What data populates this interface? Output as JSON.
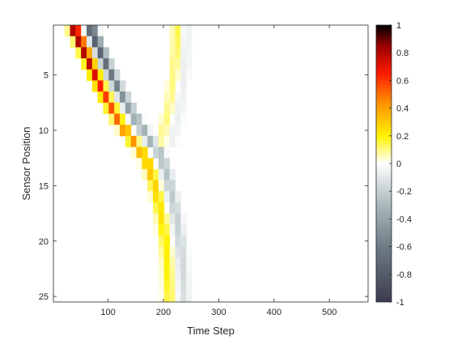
{
  "chart_data": {
    "type": "heatmap",
    "title": "",
    "xlabel": "Time Step",
    "ylabel": "Sensor Position",
    "xlim": [
      1,
      570
    ],
    "ylim": [
      0.5,
      25.5
    ],
    "y_reversed": true,
    "xticks": [
      100,
      200,
      300,
      400,
      500
    ],
    "yticks": [
      5,
      10,
      15,
      20,
      25
    ],
    "colorbar": {
      "clim": [
        -1,
        1
      ],
      "ticks": [
        1,
        0.8,
        0.6,
        0.4,
        0.2,
        0,
        -0.2,
        -0.4,
        -0.6,
        -0.8,
        -1
      ],
      "tick_labels": [
        "1",
        "0.8",
        "0.6",
        "0.4",
        "0.2",
        "0",
        "-0.2",
        "-0.4",
        "-0.6",
        "-0.8",
        "-1"
      ],
      "colormap": [
        {
          "v": -1.0,
          "color": "#3b3b4f"
        },
        {
          "v": -0.6,
          "color": "#6e7c86"
        },
        {
          "v": -0.3,
          "color": "#a9b9bc"
        },
        {
          "v": 0.0,
          "color": "#ffffff"
        },
        {
          "v": 0.2,
          "color": "#fff200"
        },
        {
          "v": 0.45,
          "color": "#ff8c00"
        },
        {
          "v": 0.65,
          "color": "#ff1a00"
        },
        {
          "v": 0.85,
          "color": "#9a0000"
        },
        {
          "v": 1.0,
          "color": "#000000"
        }
      ]
    },
    "rows": 25,
    "column_step": 10,
    "series": [
      {
        "component": "positive-pulse",
        "center_time": [
          40,
          49,
          58,
          67,
          76,
          85,
          95,
          106,
          117,
          130,
          145,
          160,
          171,
          178,
          184,
          189,
          193,
          197,
          200,
          203,
          205,
          207,
          208,
          209,
          210
        ],
        "peak": [
          0.98,
          0.9,
          0.84,
          0.78,
          0.72,
          0.66,
          0.6,
          0.56,
          0.52,
          0.48,
          0.44,
          0.4,
          0.36,
          0.32,
          0.29,
          0.27,
          0.25,
          0.24,
          0.23,
          0.22,
          0.21,
          0.2,
          0.2,
          0.19,
          0.18
        ]
      },
      {
        "component": "negative-pulse",
        "center_time": [
          70,
          78,
          87,
          96,
          106,
          116,
          127,
          138,
          150,
          163,
          177,
          192,
          200,
          206,
          211,
          216,
          220,
          224,
          227,
          230,
          232,
          234,
          235,
          236,
          237
        ],
        "peak": [
          -0.85,
          -0.8,
          -0.74,
          -0.68,
          -0.62,
          -0.56,
          -0.5,
          -0.45,
          -0.41,
          -0.37,
          -0.33,
          -0.3,
          -0.28,
          -0.26,
          -0.24,
          -0.23,
          -0.22,
          -0.21,
          -0.2,
          -0.19,
          -0.18,
          -0.17,
          -0.16,
          -0.15,
          -0.14
        ]
      },
      {
        "component": "reflected-pulse",
        "center_time": [
          225,
          224,
          223,
          221,
          219,
          216,
          213,
          209,
          205,
          200,
          198
        ],
        "peak": [
          0.15,
          0.14,
          0.13,
          0.12,
          0.11,
          0.1,
          0.1,
          0.1,
          0.1,
          0.1,
          0.08
        ]
      },
      {
        "component": "reflected-negative",
        "center_time": [
          240,
          240,
          239,
          238,
          236,
          234,
          232,
          229,
          225,
          220,
          216
        ],
        "peak": [
          -0.08,
          -0.08,
          -0.08,
          -0.08,
          -0.07,
          -0.07,
          -0.07,
          -0.07,
          -0.07,
          -0.07,
          -0.06
        ]
      }
    ]
  }
}
